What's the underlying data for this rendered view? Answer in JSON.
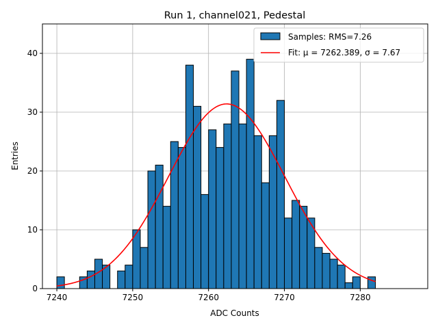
{
  "chart_data": {
    "type": "bar",
    "title": "Run 1, channel021, Pedestal",
    "xlabel": "ADC Counts",
    "ylabel": "Entries",
    "xlim": [
      7238.1,
      7288.9
    ],
    "ylim": [
      0,
      45
    ],
    "xticks": [
      7240,
      7250,
      7260,
      7270,
      7280
    ],
    "yticks": [
      0,
      10,
      20,
      30,
      40
    ],
    "grid": true,
    "legend_placement": "top-right",
    "bin_width": 1,
    "bins": [
      {
        "x": 7240,
        "count": 2
      },
      {
        "x": 7241,
        "count": 0
      },
      {
        "x": 7242,
        "count": 0
      },
      {
        "x": 7243,
        "count": 2
      },
      {
        "x": 7244,
        "count": 3
      },
      {
        "x": 7245,
        "count": 5
      },
      {
        "x": 7246,
        "count": 4
      },
      {
        "x": 7247,
        "count": 0
      },
      {
        "x": 7248,
        "count": 3
      },
      {
        "x": 7249,
        "count": 4
      },
      {
        "x": 7250,
        "count": 10
      },
      {
        "x": 7251,
        "count": 7
      },
      {
        "x": 7252,
        "count": 20
      },
      {
        "x": 7253,
        "count": 21
      },
      {
        "x": 7254,
        "count": 14
      },
      {
        "x": 7255,
        "count": 25
      },
      {
        "x": 7256,
        "count": 24
      },
      {
        "x": 7257,
        "count": 38
      },
      {
        "x": 7258,
        "count": 31
      },
      {
        "x": 7259,
        "count": 16
      },
      {
        "x": 7260,
        "count": 27
      },
      {
        "x": 7261,
        "count": 24
      },
      {
        "x": 7262,
        "count": 28
      },
      {
        "x": 7263,
        "count": 37
      },
      {
        "x": 7264,
        "count": 28
      },
      {
        "x": 7265,
        "count": 39
      },
      {
        "x": 7266,
        "count": 26
      },
      {
        "x": 7267,
        "count": 18
      },
      {
        "x": 7268,
        "count": 26
      },
      {
        "x": 7269,
        "count": 32
      },
      {
        "x": 7270,
        "count": 12
      },
      {
        "x": 7271,
        "count": 15
      },
      {
        "x": 7272,
        "count": 14
      },
      {
        "x": 7273,
        "count": 12
      },
      {
        "x": 7274,
        "count": 7
      },
      {
        "x": 7275,
        "count": 6
      },
      {
        "x": 7276,
        "count": 5
      },
      {
        "x": 7277,
        "count": 4
      },
      {
        "x": 7278,
        "count": 1
      },
      {
        "x": 7279,
        "count": 2
      },
      {
        "x": 7280,
        "count": 0
      },
      {
        "x": 7281,
        "count": 2
      }
    ],
    "series": [
      {
        "name": "Samples: RMS=7.26",
        "kind": "histogram",
        "color": "#1f77b4",
        "edge_color": "#000000"
      },
      {
        "name": "Fit: μ = 7262.389, σ = 7.67",
        "kind": "gaussian-fit",
        "color": "#ff0000",
        "mu": 7262.389,
        "sigma": 7.67,
        "amplitude": 31.4,
        "x_range": [
          7240,
          7282
        ]
      }
    ]
  }
}
